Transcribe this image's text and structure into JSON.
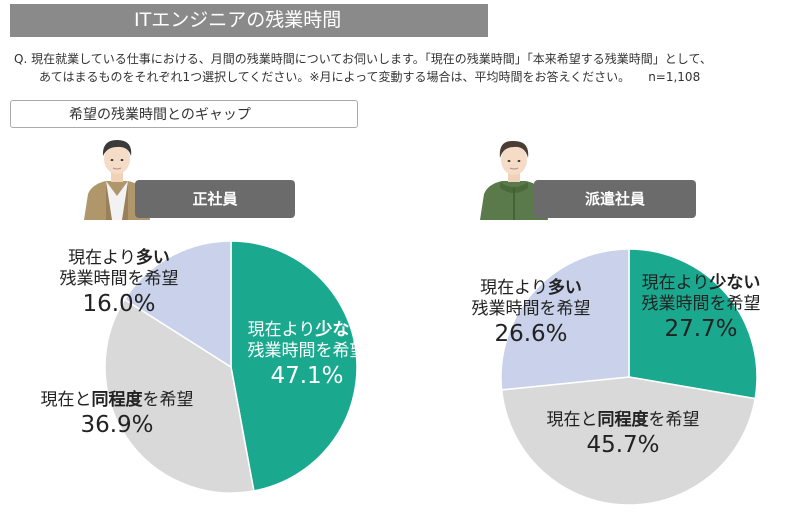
{
  "title": "ITエンジニアの残業時間",
  "question": {
    "line1": "Q.  現在就業している仕事における、月間の残業時間についてお伺いします。「現在の残業時間」「本来希望する残業時間」として、",
    "line2": "あてはまるものをそれぞれ1つ選択してください。※月によって変動する場合は、平均時間をお答えください。",
    "n": "n=1,108"
  },
  "subtitle": "希望の残業時間とのギャップ",
  "label_parts": {
    "less_pre": "現在より",
    "less_bold": "少ない",
    "less_post": "残業時間を希望",
    "more_pre": "現在より",
    "more_bold": "多い",
    "more_post": "残業時間を希望",
    "same_pre": "現在と",
    "same_bold": "同程度",
    "same_post": "を希望"
  },
  "colors": {
    "less": "#1aa98f",
    "same": "#d9d9d9",
    "more": "#c9d2ea",
    "tag": "#6b6b6b",
    "title": "#8a8a8a"
  },
  "icons": {
    "person1": "man-in-suit-icon",
    "person2": "man-in-jacket-icon"
  },
  "chart_data": [
    {
      "type": "pie",
      "title": "正社員",
      "categories": [
        "現在より少ない残業時間を希望",
        "現在と同程度を希望",
        "現在より多い残業時間を希望"
      ],
      "values": [
        47.1,
        36.9,
        16.0
      ],
      "labels": [
        "47.1%",
        "36.9%",
        "16.0%"
      ],
      "start": "12 o'clock, clockwise"
    },
    {
      "type": "pie",
      "title": "派遣社員",
      "categories": [
        "現在より少ない残業時間を希望",
        "現在と同程度を希望",
        "現在より多い残業時間を希望"
      ],
      "values": [
        27.7,
        45.7,
        26.6
      ],
      "labels": [
        "27.7%",
        "45.7%",
        "26.6%"
      ],
      "start": "12 o'clock, clockwise"
    }
  ]
}
